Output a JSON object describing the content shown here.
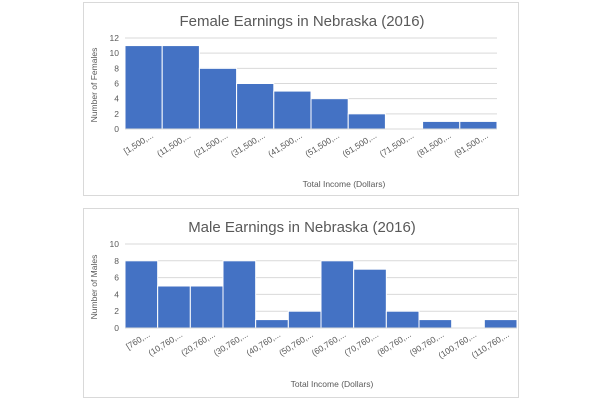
{
  "chart_data": [
    {
      "type": "bar",
      "title": "Female Earnings in Nebraska (2016)",
      "xlabel": "Total Income (Dollars)",
      "ylabel": "Number of Females",
      "ylim": [
        0,
        12
      ],
      "yticks": [
        0,
        2,
        4,
        6,
        8,
        10,
        12
      ],
      "grid": true,
      "categories": [
        "[1,500,...",
        "(11,500,...",
        "(21,500,...",
        "(31,500,...",
        "(41,500,...",
        "(51,500,...",
        "(61,500,...",
        "(71,500,...",
        "(81,500,...",
        "(91,500,..."
      ],
      "values": [
        11,
        11,
        8,
        6,
        5,
        4,
        2,
        0,
        1,
        1
      ],
      "bar_color": "#4472c4"
    },
    {
      "type": "bar",
      "title": "Male Earnings in Nebraska (2016)",
      "xlabel": "Total Income (Dollars)",
      "ylabel": "Number of Males",
      "ylim": [
        0,
        10
      ],
      "yticks": [
        0,
        2,
        4,
        6,
        8,
        10
      ],
      "grid": true,
      "categories": [
        "[760,...",
        "(10,760,...",
        "(20,760,...",
        "(30,760,...",
        "(40,760,...",
        "(50,760,...",
        "(60,760,...",
        "(70,760,...",
        "(80,760,...",
        "(90,760,...",
        "(100,760,...",
        "(110,760,..."
      ],
      "values": [
        8,
        5,
        5,
        8,
        1,
        2,
        8,
        7,
        2,
        1,
        0,
        1
      ],
      "bar_color": "#4472c4"
    }
  ]
}
